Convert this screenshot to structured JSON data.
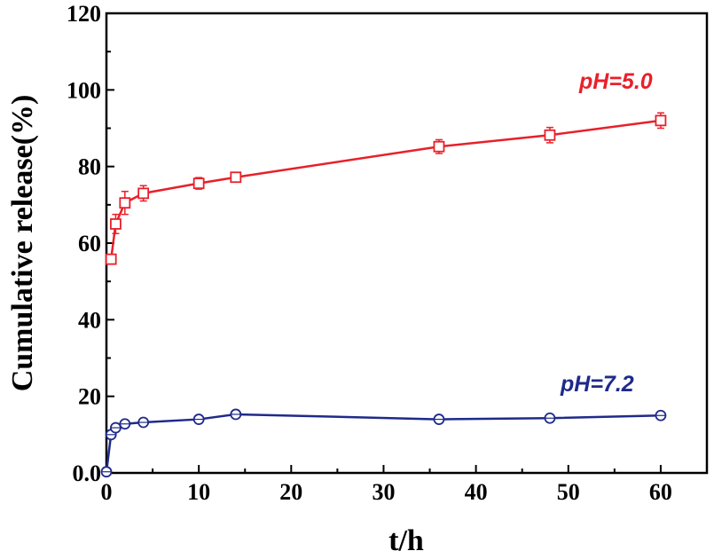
{
  "chart_data": {
    "type": "line",
    "xlabel": "t/h",
    "ylabel": "Cumulative release(%)",
    "xlim": [
      0,
      65
    ],
    "ylim": [
      0,
      120
    ],
    "x_ticks": [
      "0",
      "10",
      "20",
      "30",
      "40",
      "50",
      "60"
    ],
    "y_ticks": [
      "0.0",
      "20",
      "40",
      "60",
      "80",
      "100",
      "120"
    ],
    "grid": false,
    "series": [
      {
        "name": "pH=5.0",
        "color": "#e8202a",
        "marker": "square",
        "x": [
          0.5,
          1,
          2,
          4,
          10,
          14,
          36,
          48,
          60
        ],
        "y": [
          55.8,
          65.0,
          70.5,
          73.0,
          75.6,
          77.2,
          85.2,
          88.2,
          92.0
        ],
        "error": [
          1.2,
          2.5,
          3.0,
          2.0,
          1.5,
          1.2,
          1.8,
          2.0,
          2.0
        ]
      },
      {
        "name": "pH=7.2",
        "color": "#1f2a8a",
        "marker": "circle",
        "x": [
          0,
          0.5,
          1,
          2,
          4,
          10,
          14,
          36,
          48,
          60
        ],
        "y": [
          0.3,
          10.0,
          11.8,
          12.8,
          13.2,
          14.0,
          15.3,
          14.0,
          14.3,
          15.0
        ],
        "error": [
          0,
          0.5,
          0.5,
          0.5,
          0.5,
          0.5,
          0.6,
          0.5,
          0.5,
          0.5
        ]
      }
    ]
  }
}
